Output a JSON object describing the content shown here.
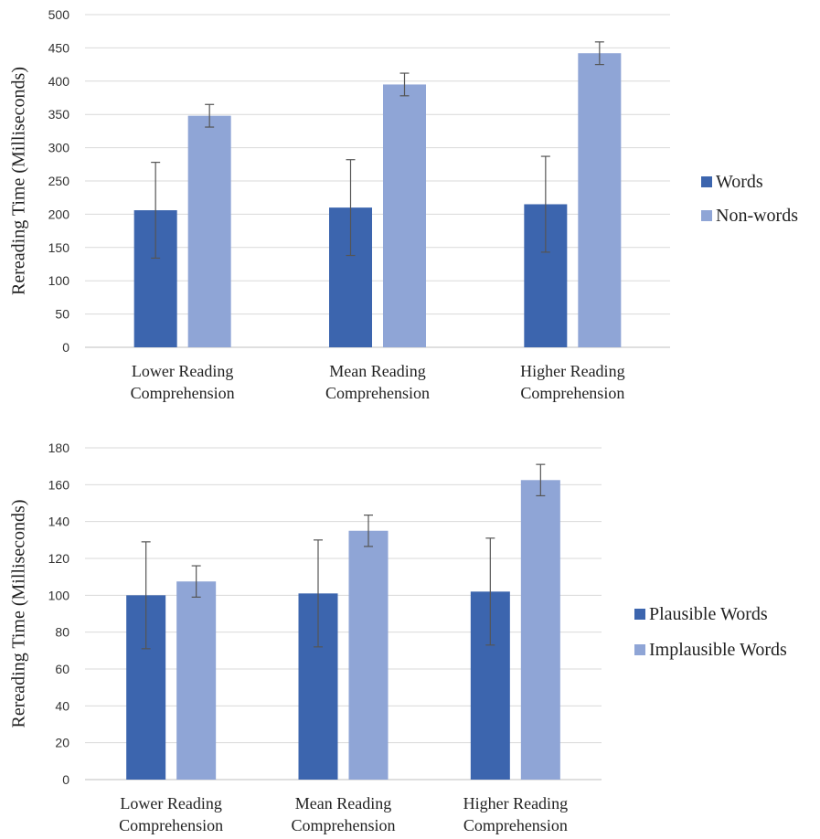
{
  "chart_data": [
    {
      "type": "bar",
      "title": "",
      "xlabel": "",
      "ylabel": "Rereading Time (Milliseconds)",
      "ylim": [
        0,
        500
      ],
      "yticks": [
        0,
        50,
        100,
        150,
        200,
        250,
        300,
        350,
        400,
        450,
        500
      ],
      "categories": [
        [
          "Lower Reading",
          "Comprehension"
        ],
        [
          "Mean Reading",
          "Comprehension"
        ],
        [
          "Higher Reading",
          "Comprehension"
        ]
      ],
      "series": [
        {
          "name": "Words",
          "color": "#3c65ae",
          "values": [
            206,
            210,
            215
          ],
          "errors": [
            72,
            72,
            72
          ]
        },
        {
          "name": "Non-words",
          "color": "#8fa5d6",
          "values": [
            348,
            395,
            442
          ],
          "errors": [
            17,
            17,
            17
          ]
        }
      ],
      "grid": true,
      "legend_position": "right"
    },
    {
      "type": "bar",
      "title": "",
      "xlabel": "",
      "ylabel": "Rereading Time (Milliseconds)",
      "ylim": [
        0,
        180
      ],
      "yticks": [
        0,
        20,
        40,
        60,
        80,
        100,
        120,
        140,
        160,
        180
      ],
      "categories": [
        [
          "Lower Reading",
          "Comprehension"
        ],
        [
          "Mean Reading",
          "Comprehension"
        ],
        [
          "Higher Reading",
          "Comprehension"
        ]
      ],
      "series": [
        {
          "name": "Plausible Words",
          "color": "#3c65ae",
          "values": [
            100,
            101,
            102
          ],
          "errors": [
            29,
            29,
            29
          ]
        },
        {
          "name": "Implausible Words",
          "color": "#8fa5d6",
          "values": [
            107.5,
            135,
            162.5
          ],
          "errors": [
            8.5,
            8.5,
            8.5
          ]
        }
      ],
      "grid": true,
      "legend_position": "right"
    }
  ]
}
